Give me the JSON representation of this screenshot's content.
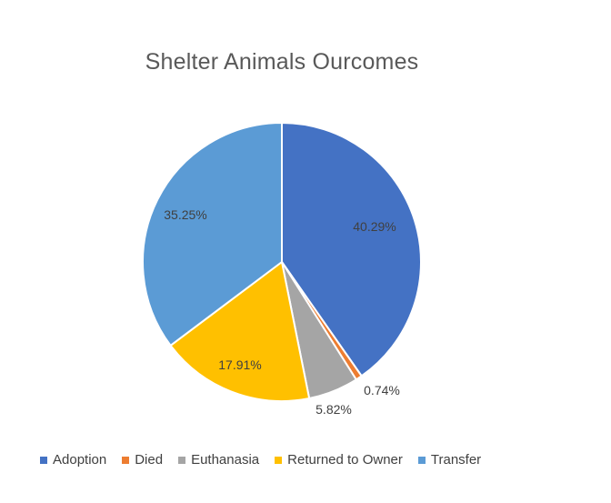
{
  "chart_data": {
    "type": "pie",
    "title": "Shelter Animals Ourcomes",
    "slices": [
      {
        "label": "Adoption",
        "value": 40.29,
        "display": "40.29%",
        "color": "#4472C4"
      },
      {
        "label": "Died",
        "value": 0.74,
        "display": "0.74%",
        "color": "#ED7D31"
      },
      {
        "label": "Euthanasia",
        "value": 5.82,
        "display": "5.82%",
        "color": "#A5A5A5"
      },
      {
        "label": "Returned to Owner",
        "value": 17.91,
        "display": "17.91%",
        "color": "#FFC000"
      },
      {
        "label": "Transfer",
        "value": 35.25,
        "display": "35.25%",
        "color": "#5B9BD5"
      }
    ],
    "legend_position": "bottom"
  }
}
